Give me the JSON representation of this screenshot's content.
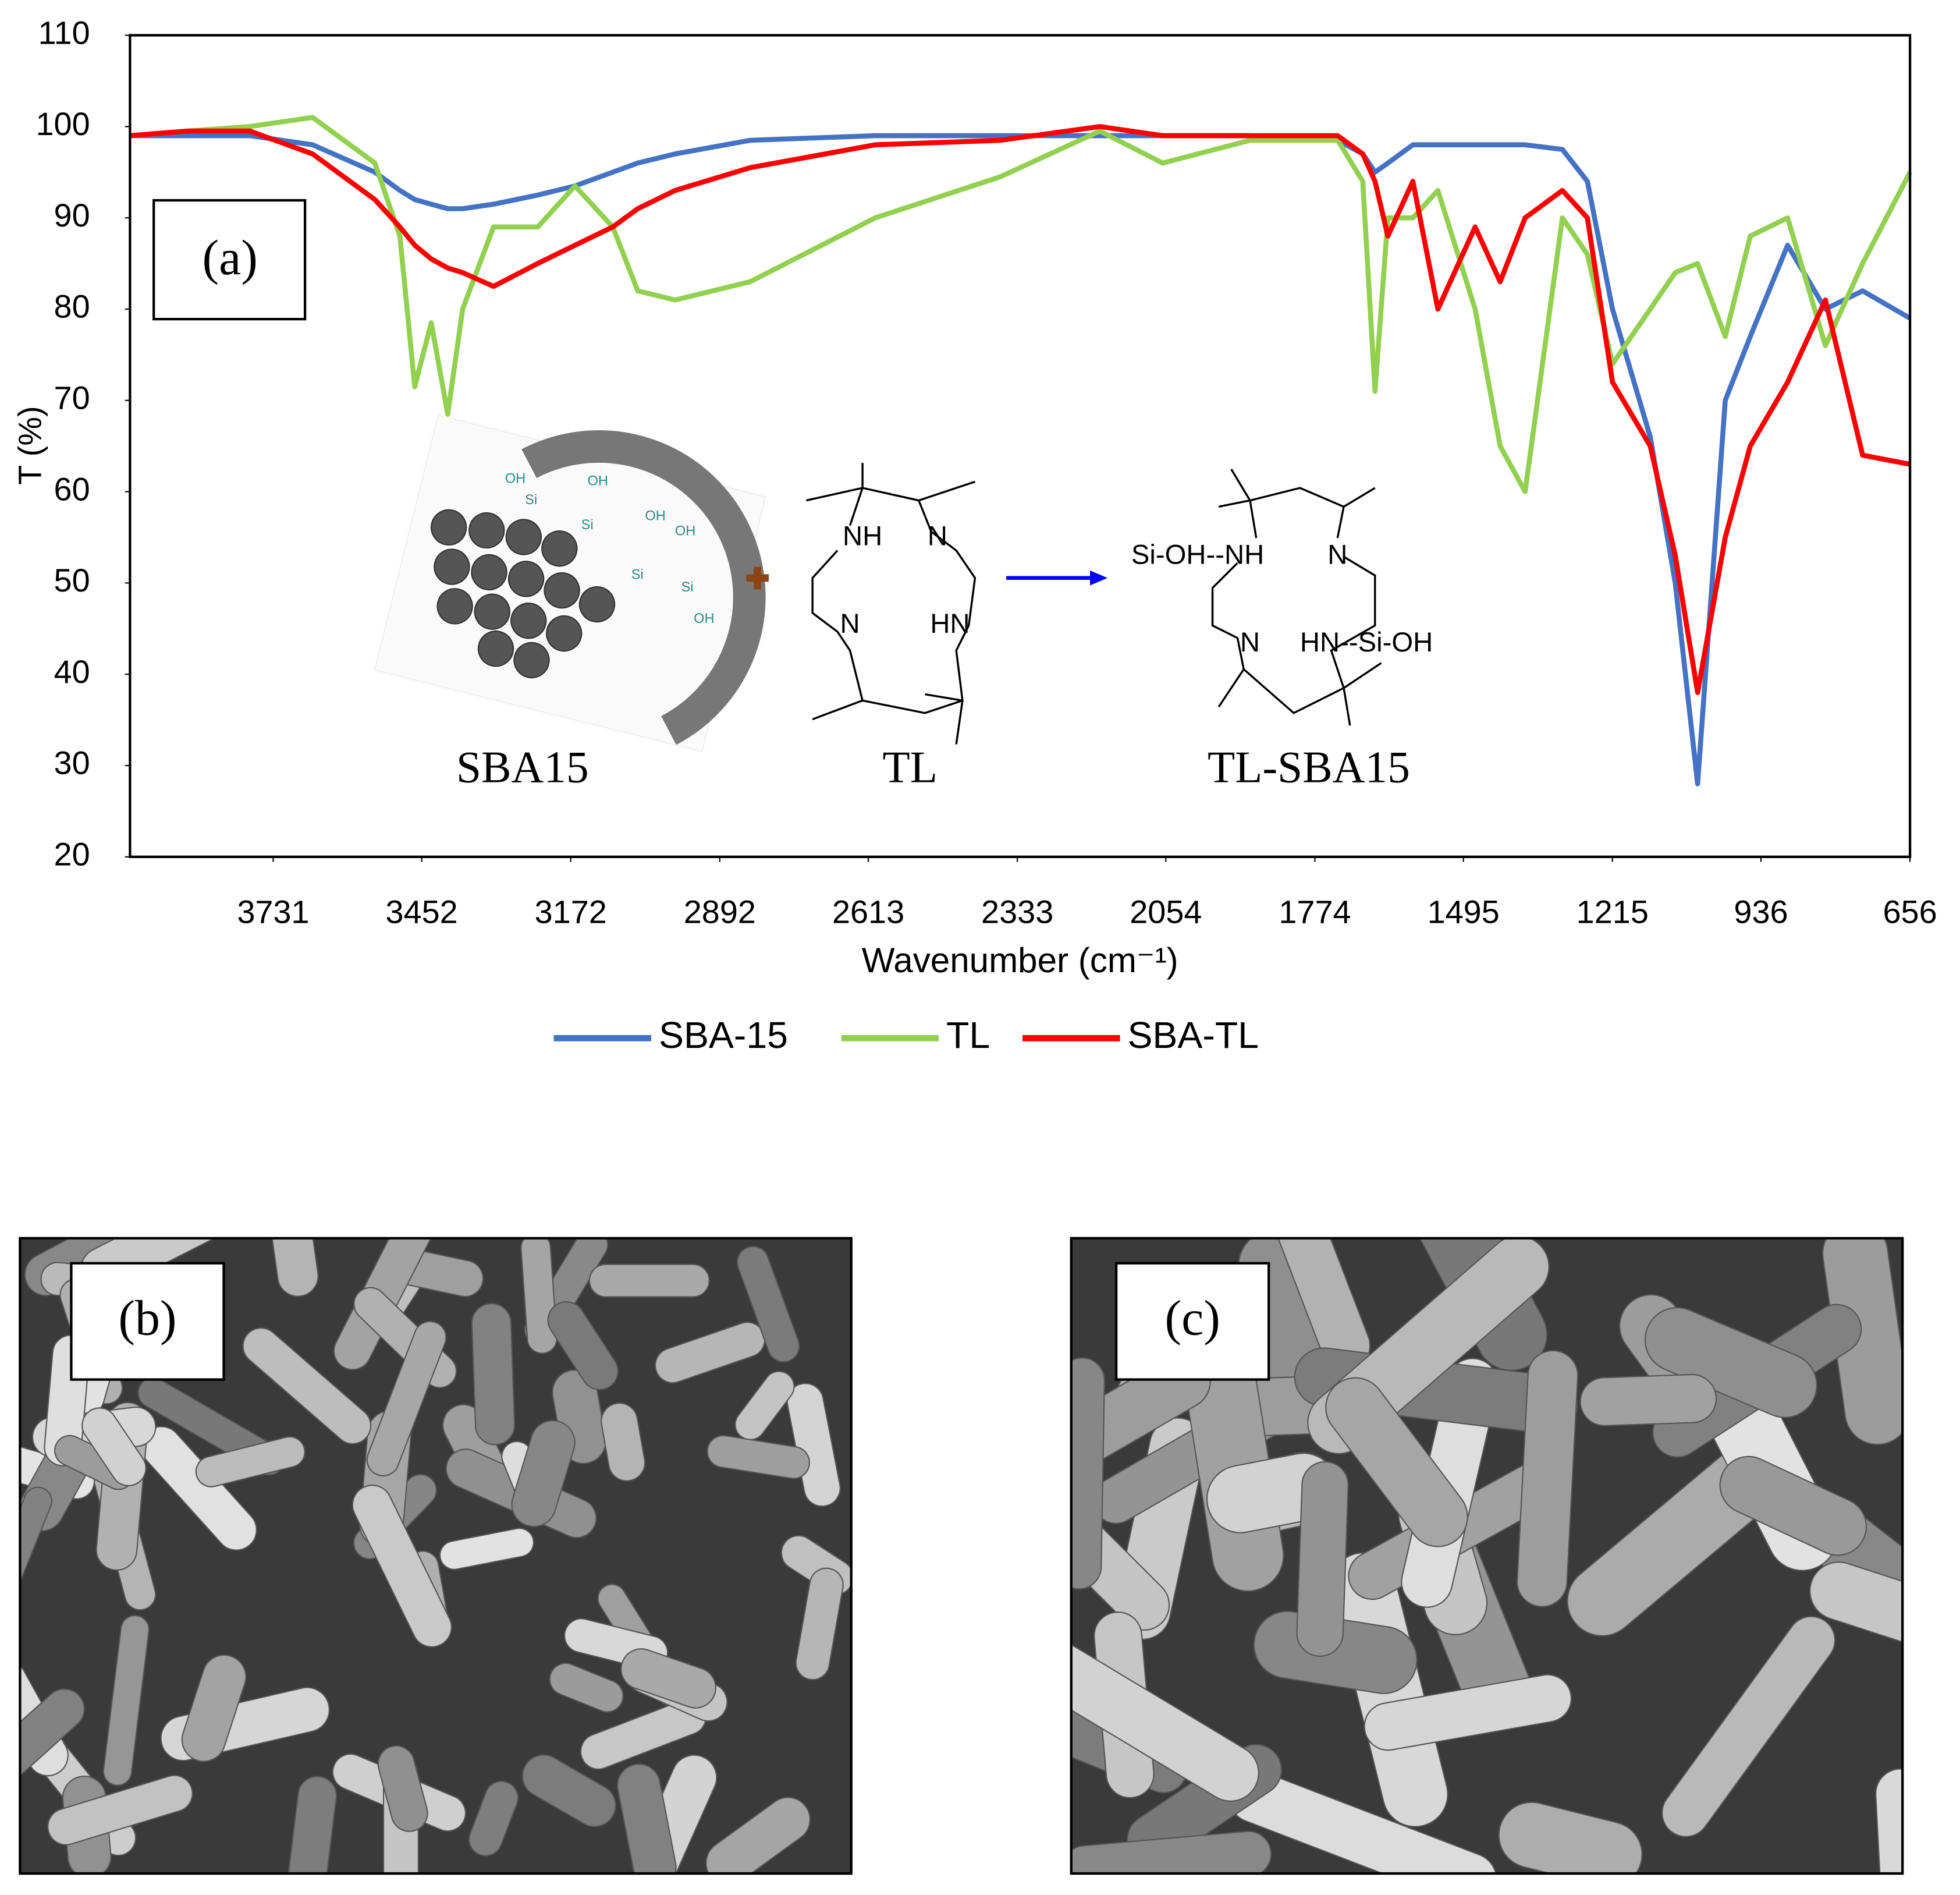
{
  "chart_data": {
    "type": "line",
    "panel_label": "(a)",
    "x_label": "Wavenumber (cm⁻¹)",
    "y_label": "T (%)",
    "xlim": [
      4000,
      656
    ],
    "xticks": [
      3731,
      3452,
      3172,
      2892,
      2613,
      2333,
      2054,
      1774,
      1495,
      1215,
      936,
      656
    ],
    "ylim": [
      20,
      110
    ],
    "yticks": [
      20,
      30,
      40,
      50,
      60,
      70,
      80,
      90,
      100,
      110
    ],
    "legend": "bottom",
    "x": [
      4000,
      3892,
      3775,
      3657,
      3540,
      3493,
      3465,
      3434,
      3403,
      3375,
      3317,
      3234,
      3164,
      3093,
      3046,
      2976,
      2835,
      2600,
      2365,
      2178,
      2060,
      1896,
      1731,
      1684,
      1661,
      1637,
      1590,
      1543,
      1473,
      1426,
      1379,
      1309,
      1262,
      1215,
      1144,
      1097,
      1055,
      1003,
      956,
      886,
      815,
      745,
      656
    ],
    "series": [
      {
        "name": "SBA-15",
        "color": "#4472c4",
        "values": [
          99,
          99,
          99,
          98,
          95,
          93,
          92,
          91.5,
          91,
          91,
          91.5,
          92.5,
          93.5,
          95,
          96,
          97,
          98.5,
          99,
          99,
          99,
          99,
          99,
          98.5,
          97,
          95,
          96,
          98,
          98,
          98,
          98,
          98,
          97.5,
          94,
          80,
          66,
          50,
          28,
          70,
          77,
          87,
          80,
          82,
          79
        ]
      },
      {
        "name": "TL",
        "color": "#92d050",
        "values": [
          99,
          99.5,
          100,
          101,
          96,
          88,
          71.5,
          78.5,
          68.5,
          80,
          89,
          89,
          93.5,
          89,
          82,
          81,
          83,
          90,
          94.5,
          99.5,
          96,
          98.5,
          98.5,
          94,
          71,
          90,
          90,
          93,
          80,
          65,
          60,
          90,
          86,
          74,
          80,
          84,
          85,
          77,
          88,
          90,
          76,
          85,
          95
        ]
      },
      {
        "name": "SBA-TL",
        "color": "#ff0000",
        "values": [
          99,
          99.5,
          99.5,
          97,
          92,
          89,
          87,
          85.5,
          84.5,
          84,
          82.5,
          85,
          87,
          89,
          91,
          93,
          95.5,
          98,
          98.5,
          100,
          99,
          99,
          99,
          97,
          94,
          88,
          94,
          80,
          89,
          83,
          90,
          93,
          90,
          72,
          65,
          53,
          38,
          55,
          65,
          72,
          81,
          64,
          63
        ]
      }
    ]
  },
  "scheme": {
    "names": [
      "SBA15",
      "TL",
      "TL-SBA15"
    ],
    "sba_groups": [
      "OH",
      "Si",
      "OH",
      "Si",
      "OH",
      "Si",
      "OH",
      "Si",
      "OH"
    ],
    "tl_atoms": [
      "NH",
      "N",
      "N",
      "HN"
    ],
    "product_atoms": [
      "Si-OH--NH",
      "N",
      "N",
      "HN--Si-OH"
    ]
  },
  "images": [
    {
      "label": "(b)"
    },
    {
      "label": "(c)"
    }
  ]
}
